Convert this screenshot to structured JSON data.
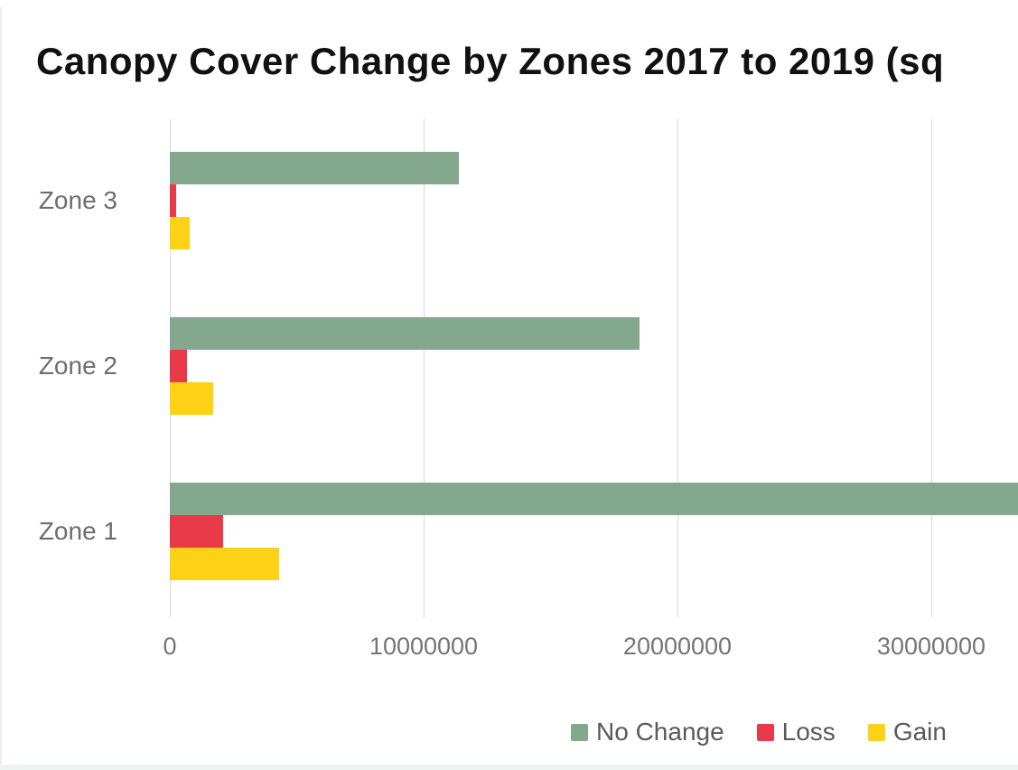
{
  "title": "Canopy Cover Change by Zones 2017 to 2019 (sq",
  "colors": {
    "no_change": "#84a88d",
    "loss": "#e83a49",
    "gain": "#fcd116",
    "gridline": "#d8d8d8",
    "axis_text": "#757575",
    "zone_label_text": "#6d6d6d",
    "legend_text": "#595959",
    "title_text": "#111111"
  },
  "chart_data": {
    "type": "bar",
    "orientation": "horizontal",
    "title": "Canopy Cover Change by Zones 2017 to 2019 (sq",
    "categories": [
      "Zone 3",
      "Zone 2",
      "Zone 1"
    ],
    "series": [
      {
        "name": "No Change",
        "color_key": "no_change",
        "values": [
          11400000,
          18500000,
          34000000
        ]
      },
      {
        "name": "Loss",
        "color_key": "loss",
        "values": [
          250000,
          670000,
          2100000
        ]
      },
      {
        "name": "Gain",
        "color_key": "gain",
        "values": [
          800000,
          1700000,
          4300000
        ]
      }
    ],
    "x_ticks": [
      0,
      10000000,
      20000000,
      30000000
    ],
    "x_tick_labels": [
      "0",
      "10000000",
      "20000000",
      "30000000"
    ],
    "x_visible_max": 33300000,
    "grid": "vertical",
    "legend_position": "bottom-right",
    "notes": "Zone 1 No Change bar extends past the right edge of the image (clipped)"
  },
  "legend": {
    "items": [
      {
        "label": "No Change",
        "color_key": "no_change"
      },
      {
        "label": "Loss",
        "color_key": "loss"
      },
      {
        "label": "Gain",
        "color_key": "gain"
      }
    ]
  }
}
